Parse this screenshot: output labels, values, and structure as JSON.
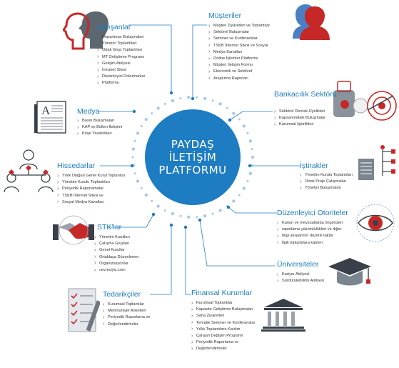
{
  "center": {
    "line1": "PAYDAŞ",
    "line2": "İLETİŞİM",
    "line3": "PLATFORMU"
  },
  "colors": {
    "accent": "#1d7cc2",
    "dots": "#a7c8e6",
    "red": "#c62828",
    "icon_gray": "#6f7680"
  },
  "groups": {
    "calisanlar": {
      "title": "Çalışanlar",
      "icon": "employees-heads-icon",
      "items": [
        "Departman Buluşmaları",
        "Yönetici Toplantıları",
        "Odak Grup Toplantıları",
        "MT Geliştirme Programı",
        "Gelişim Atölyesi",
        "İntranet Sitesi",
        "Düzenleyici Dokümanlar",
        "Platformu"
      ]
    },
    "musteriler": {
      "title": "Müşteriler",
      "icon": "customers-heads-icon",
      "items": [
        "Müşteri Ziyaretleri ve Toplantılar",
        "Sektörel Buluşmalar",
        "Seminer ve Konferanslar",
        "TSKB İnternet Sitesi ve Sosyal",
        "Medya Kanalları",
        "Online İşlemler Platformu",
        "Müşteri İletişim Formu",
        "Ekonomik ve Sektörel",
        "Araştırma Raporları"
      ]
    },
    "medya": {
      "title": "Medya",
      "icon": "newspaper-icon",
      "items": [
        "Basın Buluşmaları",
        "KAP ve Bülten İletişimi",
        "Köşe Yazarlıkları"
      ]
    },
    "bankacilik": {
      "title": "Bankacılık Sektörü",
      "icon": "target-icon",
      "items": [
        "Sektörel Dernek Üyelikleri",
        "Kapsamındaki Buluşmalar",
        "Kurumsal İşbirlikleri"
      ]
    },
    "hissedarlar": {
      "title": "Hissedarlar",
      "icon": "shareholders-network-icon",
      "items": [
        "Yıllık Olağan Genel Kurul Toplantısı",
        "Yönetim Kurulu Toplantıları",
        "Periyodik Raporlamalar",
        "TSKB İnternet Sitesi ve",
        "Sosyal Medya Kanalları"
      ]
    },
    "istirakler": {
      "title": "İştirakler",
      "icon": "org-chart-icon",
      "items": [
        "Yönetim Kurulu Toplantıları",
        "Ortak Proje Çalışmaları",
        "Yönetici Buluşmaları"
      ]
    },
    "duzenleyici": {
      "title": "Düzenleyici Otoriteler",
      "icon": "eye-icon",
      "items": [
        "Kanun ve mevzuatlarda öngörülen",
        "raporlama yükümlülükleri ve diğer",
        "bilgi akışlarının düzenli takibi",
        "İlgili toplantılara katılım"
      ]
    },
    "stk": {
      "title": "STK'lar",
      "icon": "handshake-icon",
      "items": [
        "Yönetim Kurulları",
        "Çalışma Grupları",
        "Genel Kurullar",
        "Ortaklaşa Düzenlenen",
        "Organizasyonlar",
        "cevreciyiz.com"
      ]
    },
    "universiteler": {
      "title": "Üniversiteler",
      "icon": "graduation-cap-icon",
      "items": [
        "Kariyer Atölyesi",
        "Sürdürülebilirlik Atölyesi"
      ]
    },
    "tedarikciler": {
      "title": "Tedarikçiler",
      "icon": "checklist-icon",
      "items": [
        "Kurumsal Toplantılar",
        "Memnuniyet Anketleri",
        "Periyodik Raporlama ve",
        "Değerlendirmeler"
      ]
    },
    "finansal": {
      "title": "Finansal Kurumlar",
      "icon": "bank-building-icon",
      "items": [
        "Kurumsal Toplantılar",
        "Kapasite Geliştirme Buluşmaları",
        "Saha Ziyaretleri",
        "Tematik Seminer ve Konferanslar",
        "Yıllık Toplantılara Katılım",
        "Çalışan Değişim Programı",
        "Periyodik Raporlama ve",
        "Değerlendirmeler"
      ]
    }
  }
}
